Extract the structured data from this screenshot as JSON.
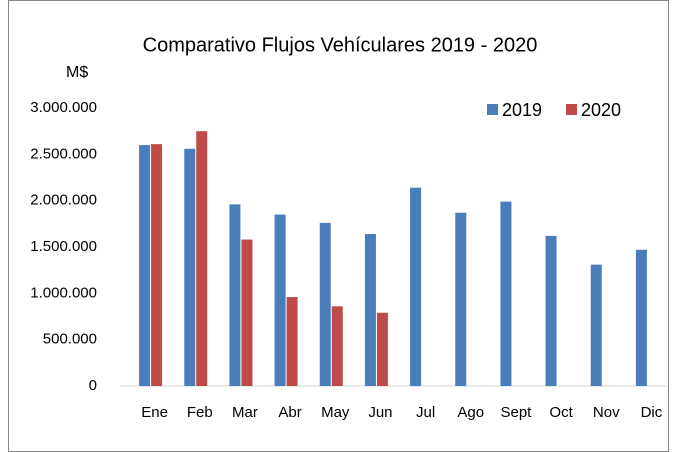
{
  "chart_data": {
    "type": "bar",
    "title": "Comparativo Flujos Vehículares 2019 - 2020",
    "y_label": "M$",
    "categories": [
      "Ene",
      "Feb",
      "Mar",
      "Abr",
      "May",
      "Jun",
      "Jul",
      "Ago",
      "Sept",
      "Oct",
      "Nov",
      "Dic"
    ],
    "series": [
      {
        "name": "2019",
        "color": "#4a7ebb",
        "values": [
          2600000,
          2560000,
          1960000,
          1850000,
          1760000,
          1640000,
          2140000,
          1870000,
          1990000,
          1620000,
          1310000,
          1470000
        ]
      },
      {
        "name": "2020",
        "color": "#be4b48",
        "values": [
          2610000,
          2750000,
          1580000,
          960000,
          860000,
          790000,
          null,
          null,
          null,
          null,
          null,
          null
        ]
      }
    ],
    "ylim": [
      0,
      3000000
    ],
    "yticks": [
      0,
      {
        "value": 500000,
        "label": "500.000"
      },
      {
        "value": 1000000,
        "label": "1.000.000"
      },
      {
        "value": 1500000,
        "label": "1.500.000"
      },
      {
        "value": 2000000,
        "label": "2.000.000"
      },
      {
        "value": 2500000,
        "label": "2.500.000"
      },
      {
        "value": 3000000,
        "label": "3.000.000"
      }
    ],
    "grid": false,
    "legend": "top-right"
  }
}
